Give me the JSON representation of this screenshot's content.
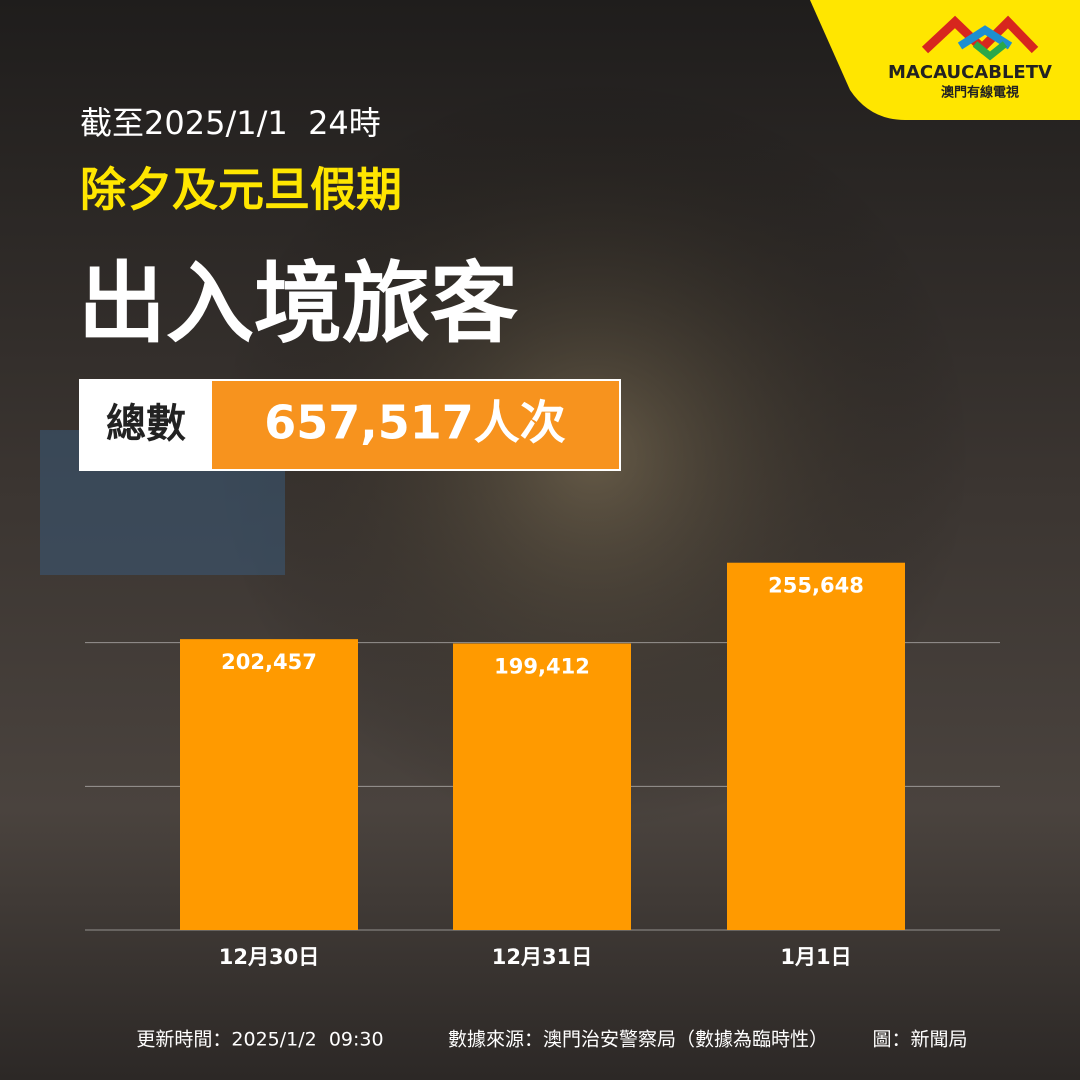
{
  "chart_data": {
    "type": "bar",
    "subtitle": "截至2025/1/1  24時",
    "kicker": "除夕及元旦假期",
    "title": "出入境旅客",
    "total_label": "總數",
    "total_text": "657,517人次",
    "categories": [
      "12月30日",
      "12月31日",
      "1月1日"
    ],
    "values": [
      202457,
      199412,
      255648
    ],
    "value_labels": [
      "202,457",
      "199,412",
      "255,648"
    ],
    "color": "#ff9a00",
    "ylim": [
      0,
      300000
    ],
    "yticks": [
      0,
      100000,
      200000
    ],
    "grid": true,
    "footer": {
      "updated": "更新時間：2025/1/2  09:30",
      "source": "數據來源：澳門治安警察局（數據為臨時性）",
      "credit": "圖：新聞局"
    }
  },
  "logo": {
    "name": "MACAUCABLETV",
    "subtitle": "澳門有線電視"
  }
}
